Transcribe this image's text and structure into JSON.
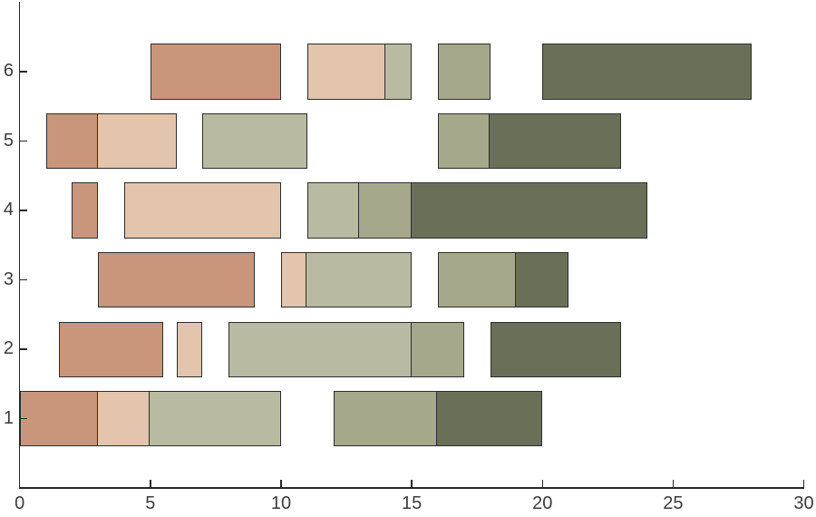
{
  "figure": {
    "background": "#ffffff",
    "axis_color": "#262626",
    "tick_label_color": "#3c3c3c",
    "title": ""
  },
  "chart_data": {
    "type": "bar",
    "subtype": "broken_barh_segmented_horizontal",
    "title": "",
    "xlabel": "",
    "ylabel": "",
    "xlim": [
      0,
      30
    ],
    "ylim": [
      0,
      7
    ],
    "grid": false,
    "legend": null,
    "bar_height": 0.8,
    "x_ticks": [
      {
        "value": 0,
        "label": "0"
      },
      {
        "value": 5,
        "label": "5"
      },
      {
        "value": 10,
        "label": "10"
      },
      {
        "value": 15,
        "label": "15"
      },
      {
        "value": 20,
        "label": "20"
      },
      {
        "value": 25,
        "label": "25"
      },
      {
        "value": 30,
        "label": "30"
      }
    ],
    "y_ticks": [
      {
        "value": 1,
        "label": "1"
      },
      {
        "value": 2,
        "label": "2"
      },
      {
        "value": 3,
        "label": "3"
      },
      {
        "value": 4,
        "label": "4"
      },
      {
        "value": 5,
        "label": "5"
      },
      {
        "value": 6,
        "label": "6"
      }
    ],
    "palette": {
      "salmon": "#c9967c",
      "tan": "#e2c5ac",
      "sage": "#b8bba1",
      "khaki": "#a5a88a",
      "olive": "#6a7057"
    },
    "edge_color": "#2d2d2d",
    "rows": [
      {
        "y": 1,
        "segments": [
          {
            "start": 0,
            "end": 3,
            "color": "salmon"
          },
          {
            "start": 3,
            "end": 5,
            "color": "tan"
          },
          {
            "start": 5,
            "end": 10,
            "color": "sage"
          },
          {
            "start": 12,
            "end": 16,
            "color": "khaki"
          },
          {
            "start": 16,
            "end": 20,
            "color": "olive"
          }
        ]
      },
      {
        "y": 2,
        "segments": [
          {
            "start": 1.5,
            "end": 5.5,
            "color": "salmon"
          },
          {
            "start": 6,
            "end": 7,
            "color": "tan"
          },
          {
            "start": 8,
            "end": 15,
            "color": "sage"
          },
          {
            "start": 15,
            "end": 17,
            "color": "khaki"
          },
          {
            "start": 18,
            "end": 23,
            "color": "olive"
          }
        ]
      },
      {
        "y": 3,
        "segments": [
          {
            "start": 3,
            "end": 9,
            "color": "salmon"
          },
          {
            "start": 10,
            "end": 11,
            "color": "tan"
          },
          {
            "start": 11,
            "end": 15,
            "color": "sage"
          },
          {
            "start": 16,
            "end": 19,
            "color": "khaki"
          },
          {
            "start": 19,
            "end": 21,
            "color": "olive"
          }
        ]
      },
      {
        "y": 4,
        "segments": [
          {
            "start": 2,
            "end": 3,
            "color": "salmon"
          },
          {
            "start": 4,
            "end": 10,
            "color": "tan"
          },
          {
            "start": 11,
            "end": 13,
            "color": "sage"
          },
          {
            "start": 13,
            "end": 15,
            "color": "khaki"
          },
          {
            "start": 15,
            "end": 24,
            "color": "olive"
          }
        ]
      },
      {
        "y": 5,
        "segments": [
          {
            "start": 1,
            "end": 3,
            "color": "salmon"
          },
          {
            "start": 3,
            "end": 6,
            "color": "tan"
          },
          {
            "start": 7,
            "end": 11,
            "color": "sage"
          },
          {
            "start": 16,
            "end": 18,
            "color": "khaki"
          },
          {
            "start": 18,
            "end": 23,
            "color": "olive"
          }
        ]
      },
      {
        "y": 6,
        "segments": [
          {
            "start": 5,
            "end": 10,
            "color": "salmon"
          },
          {
            "start": 11,
            "end": 14,
            "color": "tan"
          },
          {
            "start": 14,
            "end": 15,
            "color": "sage"
          },
          {
            "start": 16,
            "end": 18,
            "color": "khaki"
          },
          {
            "start": 20,
            "end": 28,
            "color": "olive"
          }
        ]
      }
    ]
  }
}
